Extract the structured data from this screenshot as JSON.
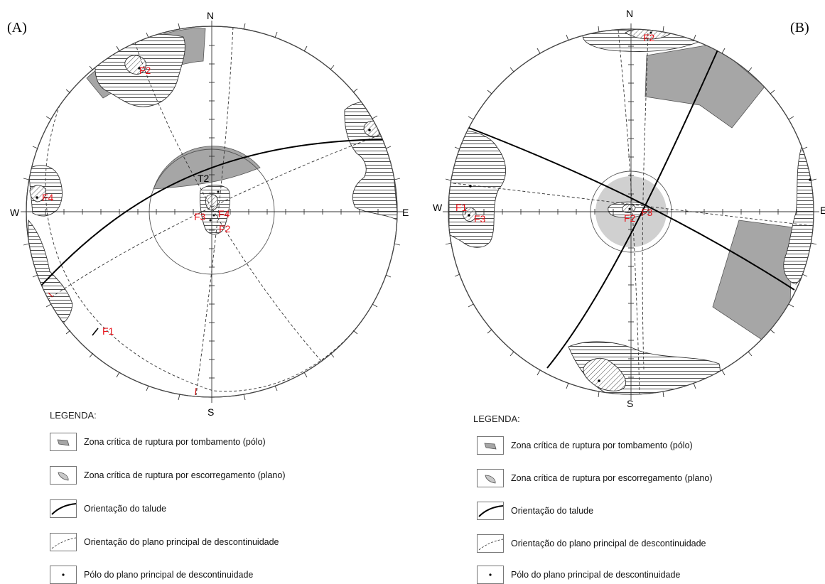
{
  "panels": [
    {
      "id": "A",
      "label": "(A)",
      "directions": {
        "n": "N",
        "s": "S",
        "e": "E",
        "w": "W"
      },
      "poles": [
        "F1",
        "F2",
        "F3",
        "F4"
      ],
      "extra_labels": {
        "f2_top": "F2",
        "t2": "T2",
        "f1_rim": "F1",
        "f4_west": "F4"
      },
      "legend": {
        "title": "LEGENDA:",
        "items": [
          "Zona crítica de ruptura por tombamento (pólo)",
          "Zona crítica de ruptura por escorregamento (plano)",
          "Orientação do talude",
          "Orientação do plano principal de descontinuidade",
          "Pólo do plano principal de descontinuidade"
        ]
      }
    },
    {
      "id": "B",
      "label": "(B)",
      "directions": {
        "n": "N",
        "s": "S",
        "e": "E",
        "w": "W"
      },
      "extra_labels": {
        "f2_top": "F2",
        "f1_west": "F1",
        "f3_west": "F3",
        "f2_center": "F2",
        "f3_center": "F3"
      },
      "legend": {
        "title": "LEGENDA:",
        "items": [
          "Zona crítica de ruptura por tombamento (pólo)",
          "Zona crítica de ruptura por escorregamento (plano)",
          "Orientação do talude",
          "Orientação do plano principal de descontinuidade",
          "Pólo do plano principal de descontinuidade"
        ]
      }
    }
  ],
  "colors": {
    "critical_zone": "#a6a6a6",
    "light_zone": "#d0d0d0",
    "label_red": "#e8141b",
    "line": "#000000"
  }
}
